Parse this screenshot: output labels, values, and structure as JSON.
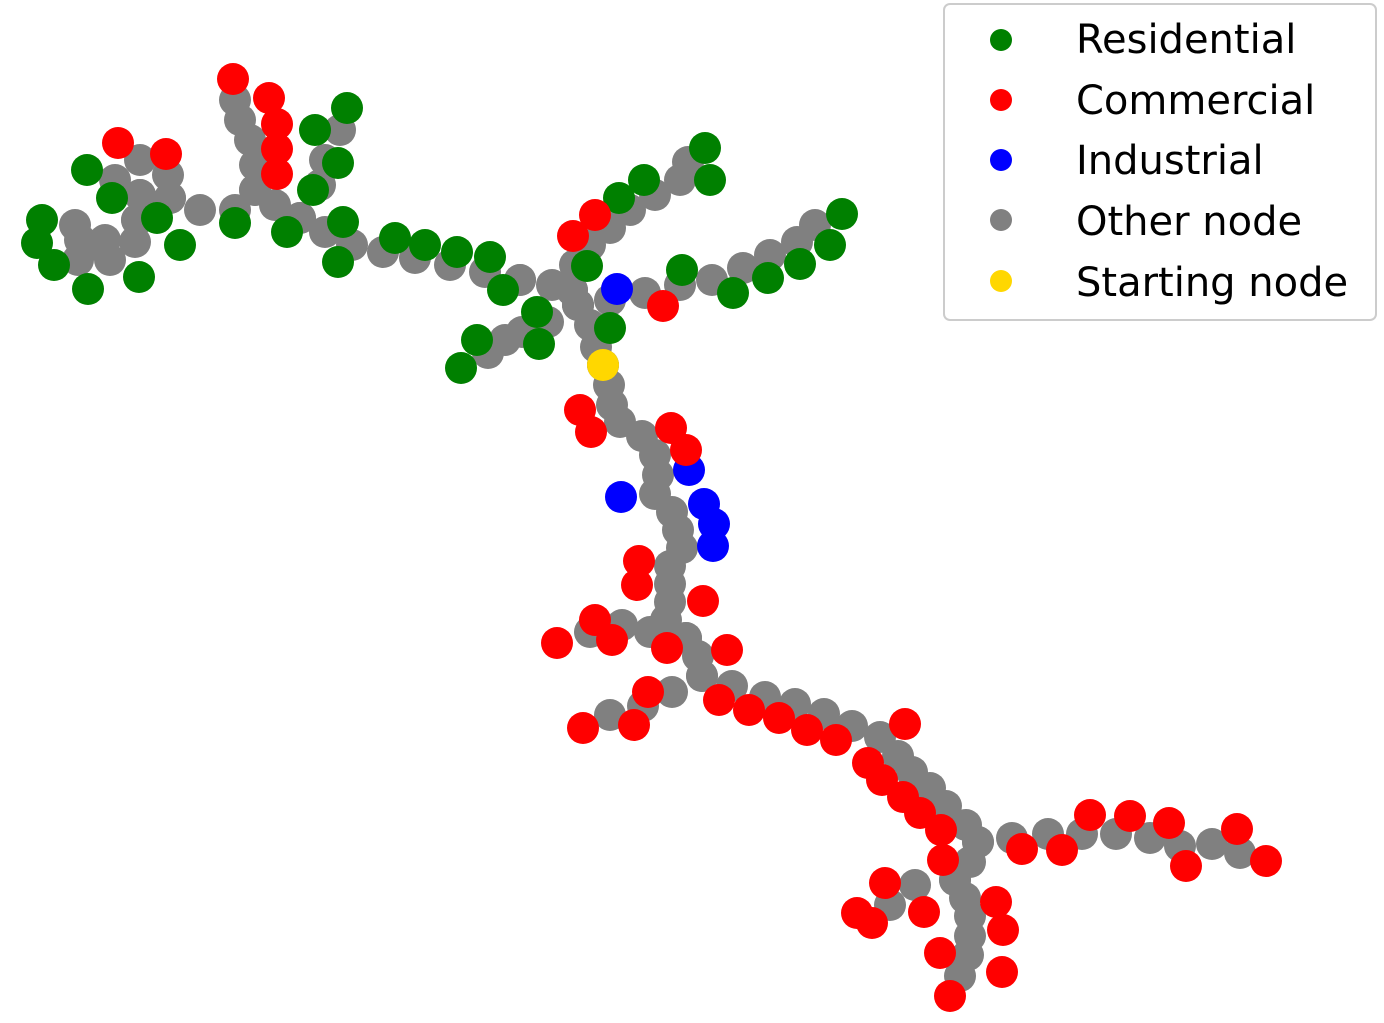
{
  "colors": {
    "residential": "#008000",
    "commercial": "#ff0000",
    "industrial": "#0000ff",
    "other": "#808080",
    "start": "#ffd700"
  },
  "legend": {
    "items": [
      {
        "key": "residential",
        "label": "Residential"
      },
      {
        "key": "commercial",
        "label": "Commercial"
      },
      {
        "key": "industrial",
        "label": "Industrial"
      },
      {
        "key": "other",
        "label": "Other node"
      },
      {
        "key": "start",
        "label": "Starting node"
      }
    ]
  }
}
